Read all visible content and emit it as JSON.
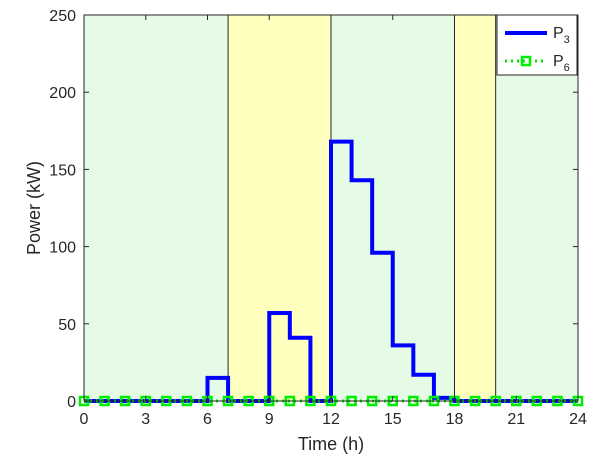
{
  "chart_data": {
    "type": "line",
    "title": "",
    "xlabel": "Time (h)",
    "ylabel": "Power (kW)",
    "xlim": [
      0,
      24
    ],
    "ylim": [
      0,
      250
    ],
    "xticks": [
      0,
      3,
      6,
      9,
      12,
      15,
      18,
      21,
      24
    ],
    "yticks": [
      0,
      50,
      100,
      150,
      200,
      250
    ],
    "grid": false,
    "legend_position": "top-right",
    "background_bands": [
      {
        "from": 0,
        "to": 7,
        "color": "#e6fbe6"
      },
      {
        "from": 7,
        "to": 12,
        "color": "#ffffbe"
      },
      {
        "from": 12,
        "to": 18,
        "color": "#e6fbe6"
      },
      {
        "from": 18,
        "to": 20,
        "color": "#ffffbe"
      },
      {
        "from": 20,
        "to": 24,
        "color": "#e6fbe6"
      }
    ],
    "band_separators": [
      7,
      12,
      18,
      20
    ],
    "series": [
      {
        "name": "P",
        "subscript": "3",
        "style": "step",
        "color": "#0000ff",
        "x": [
          0,
          1,
          2,
          3,
          4,
          5,
          6,
          7,
          8,
          9,
          10,
          11,
          12,
          13,
          14,
          15,
          16,
          17,
          18,
          19,
          20,
          21,
          22,
          23,
          24
        ],
        "values": [
          0,
          0,
          0,
          0,
          0,
          0,
          15,
          0,
          0,
          57,
          41,
          0,
          168,
          143,
          96,
          36,
          17,
          2,
          0,
          0,
          0,
          0,
          0,
          0,
          0
        ]
      },
      {
        "name": "P",
        "subscript": "6",
        "style": "dotted-square-markers",
        "color": "#00ee00",
        "x": [
          0,
          1,
          2,
          3,
          4,
          5,
          6,
          7,
          8,
          9,
          10,
          11,
          12,
          13,
          14,
          15,
          16,
          17,
          18,
          19,
          20,
          21,
          22,
          23,
          24
        ],
        "values": [
          0,
          0,
          0,
          0,
          0,
          0,
          0,
          0,
          0,
          0,
          0,
          0,
          0,
          0,
          0,
          0,
          0,
          0,
          0,
          0,
          0,
          0,
          0,
          0,
          0
        ]
      }
    ]
  }
}
